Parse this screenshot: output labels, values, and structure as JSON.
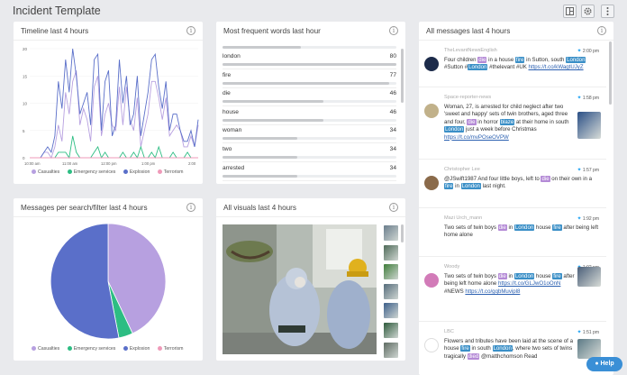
{
  "app": {
    "title": "Incident Template",
    "help_label": "Help",
    "colors": {
      "bg": "#e9eaed",
      "accent_blue": "#3a8fc7",
      "accent_purple": "#b48ad6"
    }
  },
  "toolbar": {
    "icons": [
      "layout-icon",
      "settings-icon",
      "more-icon"
    ]
  },
  "timeline": {
    "title": "Timeline last 4 hours",
    "chart_data": {
      "type": "line",
      "x_ticks": [
        "10:00 am",
        "11:00 am",
        "12:00 pm",
        "1:00 pm",
        "2:00"
      ],
      "y_ticks": [
        "0",
        "5",
        "10",
        "15",
        "20"
      ],
      "ylim": [
        0,
        20
      ],
      "grid": true,
      "legend_position": "bottom",
      "series": [
        {
          "name": "Casualties",
          "color": "#b7a0e0",
          "values": [
            0,
            0,
            0,
            0,
            1,
            1,
            0,
            2,
            6,
            3,
            12,
            8,
            14,
            16,
            6,
            9,
            7,
            3,
            13,
            15,
            4,
            8,
            10,
            6,
            5,
            13,
            6,
            13,
            7,
            5,
            11,
            2,
            5,
            8,
            14,
            14,
            11,
            7,
            11,
            4,
            5,
            6,
            5,
            2,
            2,
            4,
            2,
            6
          ]
        },
        {
          "name": "Emergency services",
          "color": "#2dbd83",
          "values": [
            0,
            0,
            0,
            0,
            0,
            0,
            0,
            0,
            1,
            1,
            1,
            0,
            4,
            1,
            0,
            0,
            0,
            0,
            1,
            2,
            0,
            1,
            0,
            0,
            0,
            0,
            1,
            0,
            0,
            1,
            0,
            2,
            0,
            0,
            1,
            0,
            2,
            0,
            0,
            0,
            1,
            0,
            0,
            0,
            1,
            0,
            0,
            0
          ]
        },
        {
          "name": "Explosion",
          "color": "#5a6fc9",
          "values": [
            0,
            0,
            0,
            0,
            1,
            2,
            1,
            4,
            14,
            9,
            18,
            12,
            20,
            15,
            8,
            10,
            12,
            6,
            18,
            19,
            5,
            14,
            16,
            4,
            6,
            18,
            10,
            15,
            6,
            8,
            15,
            4,
            8,
            12,
            18,
            19,
            13,
            9,
            14,
            5,
            8,
            8,
            5,
            3,
            3,
            5,
            2,
            7
          ]
        },
        {
          "name": "Terrorism",
          "color": "#ef9ab9",
          "values": [
            0,
            0,
            0,
            0,
            0,
            0,
            0,
            0,
            0,
            0,
            0,
            0,
            0,
            0,
            0,
            0,
            0,
            0,
            0,
            0,
            0,
            0,
            0,
            0,
            0,
            0,
            0,
            0,
            0,
            0,
            0,
            0,
            0,
            0,
            0,
            0,
            0,
            0,
            0,
            0,
            0,
            0,
            0,
            0,
            0,
            0,
            0,
            0
          ]
        }
      ]
    }
  },
  "words": {
    "title": "Most frequent words last hour",
    "max": 80,
    "items": [
      {
        "label": "london",
        "value": "80",
        "frac": 1.0
      },
      {
        "label": "fire",
        "value": "77",
        "frac": 0.96
      },
      {
        "label": "die",
        "value": "46",
        "frac": 0.58
      },
      {
        "label": "house",
        "value": "46",
        "frac": 0.58
      },
      {
        "label": "woman",
        "value": "34",
        "frac": 0.43
      },
      {
        "label": "two",
        "value": "34",
        "frac": 0.43
      },
      {
        "label": "arrested",
        "value": "34",
        "frac": 0.43
      }
    ]
  },
  "pie": {
    "title": "Messages per search/filter last 4 hours",
    "chart_data": {
      "type": "pie",
      "legend_position": "bottom",
      "slices": [
        {
          "name": "Casualties",
          "value": 43,
          "color": "#b7a0e0"
        },
        {
          "name": "Emergency services",
          "value": 4,
          "color": "#2dbd83"
        },
        {
          "name": "Explosion",
          "value": 53,
          "color": "#5a6fc9"
        },
        {
          "name": "Terrorism",
          "value": 0,
          "color": "#ef9ab9"
        }
      ]
    }
  },
  "visuals": {
    "title": "All visuals last 4 hours"
  },
  "messages": {
    "title": "All messages last 4 hours",
    "items": [
      {
        "author": "TheLevantNewsEnglish",
        "time": "2:00 pm",
        "parts": [
          [
            "t",
            "Four children "
          ],
          [
            "p",
            "die"
          ],
          [
            "t",
            " in a house "
          ],
          [
            "b",
            "fire"
          ],
          [
            "t",
            " in Sutton, south "
          ],
          [
            "b",
            "London"
          ],
          [
            "t",
            " #Sutton #"
          ],
          [
            "b",
            "London"
          ],
          [
            "t",
            " #thelevant #UK "
          ],
          [
            "l",
            "https://t.co/kWagtUJyZ"
          ]
        ]
      },
      {
        "author": "Space-reporter-news",
        "time": "1:58 pm",
        "parts": [
          [
            "t",
            "Woman, 27, is arrested for child neglect after two 'sweet and happy' sets of twin brothers, aged three and four, "
          ],
          [
            "p",
            "die"
          ],
          [
            "t",
            " in horror "
          ],
          [
            "b",
            "blaze"
          ],
          [
            "t",
            " at their home in south "
          ],
          [
            "b",
            "London"
          ],
          [
            "t",
            " just a week before Christmas "
          ],
          [
            "l",
            "https://t.co/mvPOseOVPW"
          ]
        ]
      },
      {
        "author": "Christopher Lee",
        "time": "1:57 pm",
        "parts": [
          [
            "t",
            "@JSwift1987 And four little boys, left to "
          ],
          [
            "p",
            "die"
          ],
          [
            "t",
            " on their own in a "
          ],
          [
            "b",
            "fire"
          ],
          [
            "t",
            " in "
          ],
          [
            "b",
            "London"
          ],
          [
            "t",
            " last night."
          ]
        ]
      },
      {
        "author": "Mazi Urch_mann",
        "time": "1:92 pm",
        "parts": [
          [
            "t",
            "Two sets of twin boys "
          ],
          [
            "p",
            "die"
          ],
          [
            "t",
            " in "
          ],
          [
            "b",
            "London"
          ],
          [
            "t",
            " house "
          ],
          [
            "b",
            "fire"
          ],
          [
            "t",
            " after being left home alone"
          ]
        ]
      },
      {
        "author": "Woody",
        "time": "1:92 pm",
        "parts": [
          [
            "t",
            "Two sets of twin boys "
          ],
          [
            "p",
            "die"
          ],
          [
            "t",
            " in "
          ],
          [
            "b",
            "London"
          ],
          [
            "t",
            " house "
          ],
          [
            "b",
            "fire"
          ],
          [
            "t",
            " after being left home alone "
          ],
          [
            "l",
            "https://t.co/GLJwO1oOnN"
          ],
          [
            "t",
            " #NEWS "
          ],
          [
            "l",
            "https://t.co/gqbMuvipl8"
          ]
        ]
      },
      {
        "author": "LBC",
        "time": "1:51 pm",
        "parts": [
          [
            "t",
            "Flowers and tributes have been laid at the scene of a house "
          ],
          [
            "b",
            "fire"
          ],
          [
            "t",
            " in south "
          ],
          [
            "b",
            "London"
          ],
          [
            "t",
            ", where two sets of twins tragically "
          ],
          [
            "p",
            "died"
          ],
          [
            "t",
            " @matthchomson Read"
          ]
        ]
      }
    ]
  }
}
